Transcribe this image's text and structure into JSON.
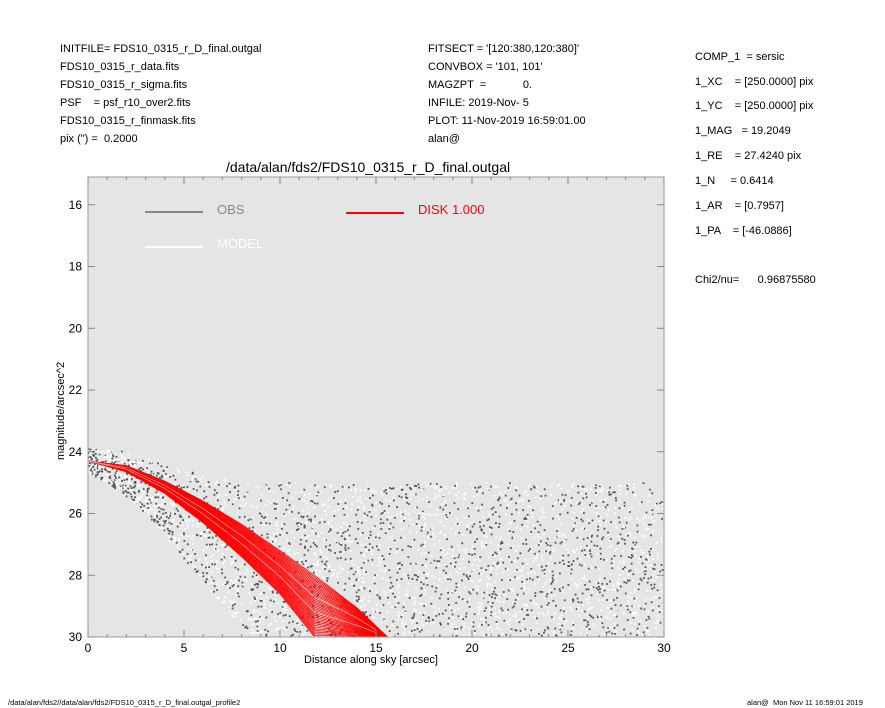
{
  "header_left": [
    "INITFILE= FDS10_0315_r_D_final.outgal",
    "FDS10_0315_r_data.fits",
    "FDS10_0315_r_sigma.fits",
    "PSF    = psf_r10_over2.fits",
    "FDS10_0315_r_finmask.fits",
    "pix (\") =  0.2000"
  ],
  "header_mid": [
    "FITSECT = '[120:380,120:380]'",
    "CONVBOX = '101, 101'",
    "MAGZPT  =            0.",
    "INFILE: 2019-Nov- 5",
    "PLOT: 11-Nov-2019 16:59:01.00",
    "alan@"
  ],
  "params": [
    "COMP_1  = sersic",
    "1_XC    = [250.0000] pix",
    "1_YC    = [250.0000] pix",
    "1_MAG   = 19.2049",
    "1_RE    = 27.4240 pix",
    "1_N     = 0.6414",
    "1_AR    = [0.7957]",
    "1_PA    = [-46.0886]"
  ],
  "chi2": "Chi2/nu=      0.96875580",
  "footer": {
    "left": "/data/alan/fds2//data/alan/fds2/FDS10_0315_r_D_final.outgal_profile2",
    "right": "alan@  Mon Nov 11 16:59:01 2019"
  },
  "colors": {
    "background": "#e5e5e5",
    "obs_dark": "#555555",
    "obs_light": "#ffffff",
    "model": "#ffffff",
    "disk": "#ff0000",
    "obs_legend": "#888888"
  },
  "chart_data": {
    "type": "scatter",
    "title": "/data/alan/fds2/FDS10_0315_r_D_final.outgal",
    "xlabel": "Distance along sky [arcsec]",
    "ylabel": "magnitude/arcsec^2",
    "xlim": [
      0,
      30
    ],
    "ylim": [
      30,
      15.1
    ],
    "y_inverted": true,
    "xticks": [
      "0",
      "5",
      "10",
      "15",
      "20",
      "25",
      "30"
    ],
    "yticks": [
      "16",
      "18",
      "20",
      "22",
      "24",
      "26",
      "28",
      "30"
    ],
    "legend": [
      {
        "name": "OBS",
        "color": "#888888"
      },
      {
        "name": "MODEL",
        "color": "#ffffff"
      },
      {
        "name": "DISK  1.000",
        "color": "#ff0000"
      }
    ],
    "series": [
      {
        "name": "OBS",
        "kind": "scatter_cloud",
        "x_range": [
          0,
          30
        ],
        "upper_envelope": [
          [
            0,
            23.9
          ],
          [
            2,
            24.0
          ],
          [
            5,
            24.6
          ],
          [
            8,
            25.0
          ],
          [
            10,
            25.0
          ],
          [
            15,
            25.0
          ],
          [
            20,
            25.0
          ],
          [
            25,
            25.0
          ],
          [
            30,
            25.0
          ]
        ],
        "lower_envelope": [
          [
            0,
            24.7
          ],
          [
            1,
            25.0
          ],
          [
            3,
            26.0
          ],
          [
            5,
            27.5
          ],
          [
            7,
            29.0
          ],
          [
            8.5,
            30.0
          ],
          [
            30,
            30.0
          ]
        ]
      },
      {
        "name": "MODEL / DISK",
        "kind": "band",
        "upper": [
          [
            0,
            24.3
          ],
          [
            2,
            24.45
          ],
          [
            4,
            24.95
          ],
          [
            6,
            25.6
          ],
          [
            8,
            26.35
          ],
          [
            10,
            27.2
          ],
          [
            12,
            28.1
          ],
          [
            14,
            29.05
          ],
          [
            15.6,
            30.0
          ]
        ],
        "lower": [
          [
            0,
            24.3
          ],
          [
            2,
            24.65
          ],
          [
            4,
            25.35
          ],
          [
            6,
            26.3
          ],
          [
            8,
            27.4
          ],
          [
            10,
            28.6
          ],
          [
            11.8,
            30.0
          ]
        ]
      }
    ]
  }
}
